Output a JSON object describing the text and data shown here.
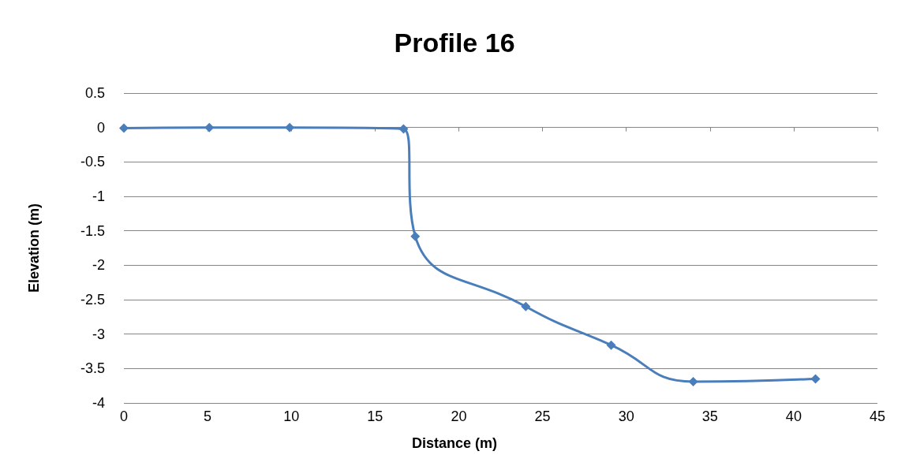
{
  "chart_data": {
    "type": "line",
    "title": "Profile 16",
    "xlabel": "Distance (m)",
    "ylabel": "Elevation (m)",
    "x": [
      0,
      5.1,
      9.9,
      16.7,
      17.4,
      24.0,
      29.1,
      34.0,
      41.3
    ],
    "series": [
      {
        "color": "#4a7ebb",
        "values": [
          -0.01,
          0.0,
          0.0,
          -0.02,
          -1.58,
          -2.6,
          -3.16,
          -3.69,
          -3.65
        ]
      }
    ],
    "xlim": [
      0,
      45
    ],
    "xticks": [
      0,
      5,
      10,
      15,
      20,
      25,
      30,
      35,
      40,
      45
    ],
    "ylim": [
      -4,
      0.5
    ],
    "yticks": [
      -4,
      -3.5,
      -3,
      -2.5,
      -2,
      -1.5,
      -1,
      -0.5,
      0,
      0.5
    ],
    "grid": "y",
    "marker": "diamond",
    "line_style": "solid"
  }
}
